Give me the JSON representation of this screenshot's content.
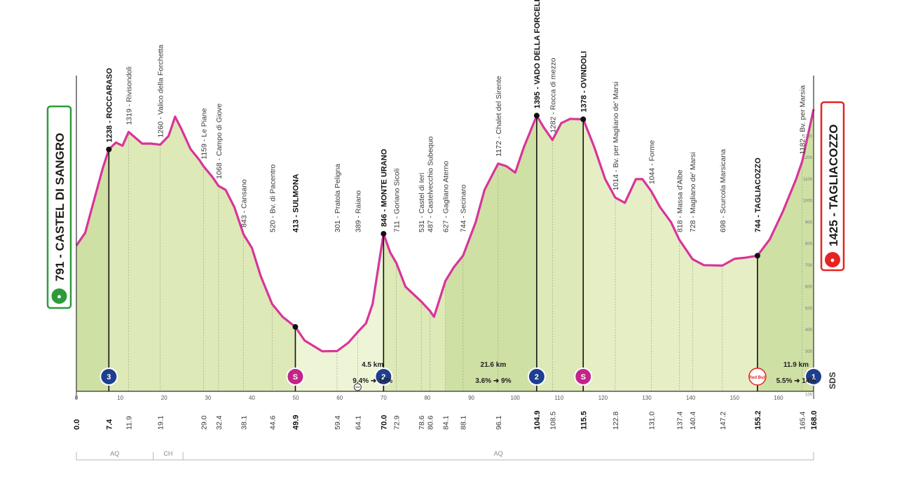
{
  "chart_data": {
    "type": "area",
    "x_unit": "km",
    "xlim": [
      0,
      168
    ],
    "ylim": [
      0,
      1600
    ],
    "x_ticks": [
      0,
      10,
      20,
      30,
      40,
      50,
      60,
      70,
      80,
      90,
      100,
      110,
      120,
      130,
      140,
      150,
      160
    ],
    "altitude_axis_ticks": [
      100,
      200,
      300,
      400,
      500,
      600,
      700,
      800,
      900,
      1000,
      1100,
      1200,
      1300
    ],
    "profile": [
      [
        0,
        791
      ],
      [
        2,
        850
      ],
      [
        4,
        1000
      ],
      [
        6,
        1150
      ],
      [
        7.4,
        1238
      ],
      [
        9,
        1270
      ],
      [
        10.5,
        1255
      ],
      [
        11.9,
        1319
      ],
      [
        13,
        1300
      ],
      [
        15,
        1265
      ],
      [
        17,
        1265
      ],
      [
        19.1,
        1260
      ],
      [
        21,
        1300
      ],
      [
        22.5,
        1390
      ],
      [
        24,
        1330
      ],
      [
        26,
        1240
      ],
      [
        28,
        1190
      ],
      [
        29,
        1159
      ],
      [
        31,
        1110
      ],
      [
        32.4,
        1068
      ],
      [
        34,
        1050
      ],
      [
        36,
        970
      ],
      [
        38.1,
        843
      ],
      [
        40,
        780
      ],
      [
        42,
        650
      ],
      [
        44.6,
        520
      ],
      [
        47,
        460
      ],
      [
        49.9,
        413
      ],
      [
        52,
        350
      ],
      [
        56,
        300
      ],
      [
        59.4,
        301
      ],
      [
        62,
        340
      ],
      [
        64.1,
        389
      ],
      [
        66,
        430
      ],
      [
        67.5,
        520
      ],
      [
        70,
        846
      ],
      [
        71.5,
        760
      ],
      [
        72.9,
        711
      ],
      [
        75,
        600
      ],
      [
        78.6,
        531
      ],
      [
        80,
        500
      ],
      [
        80.6,
        487
      ],
      [
        81.5,
        460
      ],
      [
        84.1,
        627
      ],
      [
        86,
        690
      ],
      [
        88.1,
        744
      ],
      [
        91,
        900
      ],
      [
        93,
        1050
      ],
      [
        96.1,
        1172
      ],
      [
        98,
        1160
      ],
      [
        100,
        1130
      ],
      [
        102,
        1250
      ],
      [
        104.9,
        1395
      ],
      [
        106.5,
        1340
      ],
      [
        108.5,
        1282
      ],
      [
        110.5,
        1360
      ],
      [
        112.5,
        1380
      ],
      [
        115.5,
        1378
      ],
      [
        118,
        1250
      ],
      [
        120.5,
        1100
      ],
      [
        122.8,
        1014
      ],
      [
        125,
        990
      ],
      [
        127.5,
        1100
      ],
      [
        129,
        1100
      ],
      [
        131,
        1044
      ],
      [
        133,
        970
      ],
      [
        135.5,
        900
      ],
      [
        137.4,
        818
      ],
      [
        140.4,
        728
      ],
      [
        143,
        700
      ],
      [
        147.2,
        698
      ],
      [
        150,
        730
      ],
      [
        152.5,
        735
      ],
      [
        155.2,
        744
      ],
      [
        158,
        820
      ],
      [
        161,
        950
      ],
      [
        164,
        1100
      ],
      [
        165.4,
        1182
      ],
      [
        168,
        1425
      ]
    ],
    "bands": [
      {
        "from": 0,
        "to": 7.4,
        "color": "#cfe0a4"
      },
      {
        "from": 7.4,
        "to": 49.9,
        "color": "#dde9b7"
      },
      {
        "from": 49.9,
        "to": 70,
        "color": "#eef4d6"
      },
      {
        "from": 70,
        "to": 84.1,
        "color": "#dde9b7"
      },
      {
        "from": 84.1,
        "to": 104.9,
        "color": "#cfe0a4"
      },
      {
        "from": 104.9,
        "to": 115.5,
        "color": "#dde9b7"
      },
      {
        "from": 115.5,
        "to": 155.2,
        "color": "#e6eec6"
      },
      {
        "from": 155.2,
        "to": 168,
        "color": "#cfe0a4"
      }
    ],
    "points_of_interest": [
      {
        "km": 7.4,
        "alt": 1238,
        "name": "ROCCARASO",
        "bold": true
      },
      {
        "km": 11.9,
        "alt": 1319,
        "name": "Rivisondoli",
        "bold": false
      },
      {
        "km": 19.1,
        "alt": 1260,
        "name": "Valico della Forchetta",
        "bold": false
      },
      {
        "km": 29.0,
        "alt": 1159,
        "name": "Le Piane",
        "bold": false
      },
      {
        "km": 32.4,
        "alt": 1068,
        "name": "Campo di Giove",
        "bold": false
      },
      {
        "km": 38.1,
        "alt": 843,
        "name": "Cansano",
        "bold": false
      },
      {
        "km": 44.6,
        "alt": 520,
        "name": "Bv. di Pacentro",
        "bold": false
      },
      {
        "km": 49.9,
        "alt": 413,
        "name": "SULMONA",
        "bold": true
      },
      {
        "km": 59.4,
        "alt": 301,
        "name": "Pratola Peligna",
        "bold": false
      },
      {
        "km": 64.1,
        "alt": 389,
        "name": "Raiano",
        "bold": false
      },
      {
        "km": 70.0,
        "alt": 846,
        "name": "MONTE URANO",
        "bold": true
      },
      {
        "km": 72.9,
        "alt": 711,
        "name": "Goriano Sicoli",
        "bold": false
      },
      {
        "km": 78.6,
        "alt": 531,
        "name": "Castel di Ieri",
        "bold": false
      },
      {
        "km": 80.6,
        "alt": 487,
        "name": "Castelvecchio Subequo",
        "bold": false
      },
      {
        "km": 84.1,
        "alt": 627,
        "name": "Gagliano Aterno",
        "bold": false
      },
      {
        "km": 88.1,
        "alt": 744,
        "name": "Secinaro",
        "bold": false
      },
      {
        "km": 96.1,
        "alt": 1172,
        "name": "Chalet del Sirente",
        "bold": false
      },
      {
        "km": 104.9,
        "alt": 1395,
        "name": "VADO DELLA FORCELLA",
        "bold": true
      },
      {
        "km": 108.5,
        "alt": 1282,
        "name": "Rocca di mezzo",
        "bold": false
      },
      {
        "km": 115.5,
        "alt": 1378,
        "name": "OVINDOLI",
        "bold": true
      },
      {
        "km": 122.8,
        "alt": 1014,
        "name": "Bv. per Magliano de' Marsi",
        "bold": false
      },
      {
        "km": 131.0,
        "alt": 1044,
        "name": "Forme",
        "bold": false
      },
      {
        "km": 137.4,
        "alt": 818,
        "name": "Massa d'Albe",
        "bold": false
      },
      {
        "km": 140.4,
        "alt": 728,
        "name": "Magliano de' Marsi",
        "bold": false
      },
      {
        "km": 147.2,
        "alt": 698,
        "name": "Scurcola Marsicana",
        "bold": false
      },
      {
        "km": 155.2,
        "alt": 744,
        "name": "TAGLIACOZZO",
        "bold": true
      },
      {
        "km": 165.4,
        "alt": 1182,
        "name": "Bv. per Marsia",
        "bold": false
      }
    ],
    "distance_labels": [
      "0.0",
      "7.4",
      "11.9",
      "19.1",
      "29.0",
      "32.4",
      "38.1",
      "44.6",
      "49.9",
      "59.4",
      "64.1",
      "70.0",
      "72.9",
      "78.6",
      "80.6",
      "84.1",
      "88.1",
      "96.1",
      "104.9",
      "108.5",
      "115.5",
      "122.8",
      "131.0",
      "137.4",
      "140.4",
      "147.2",
      "155.2",
      "165.4",
      "168.0"
    ],
    "bold_distances": [
      "0.0",
      "7.4",
      "49.9",
      "70.0",
      "104.9",
      "115.5",
      "155.2",
      "168.0"
    ],
    "start": {
      "name": "CASTEL DI SANGRO",
      "alt": 791,
      "color": "#2e9b3a"
    },
    "finish": {
      "name": "TAGLIACOZZO",
      "alt": 1425,
      "color": "#e52421"
    },
    "badges": [
      {
        "km": 7.4,
        "type": "climb",
        "label": "3",
        "color": "#1e3f8f"
      },
      {
        "km": 49.9,
        "type": "sprint",
        "label": "S",
        "color": "#c2258a"
      },
      {
        "km": 70.0,
        "type": "climb",
        "label": "2",
        "color": "#1e3f8f"
      },
      {
        "km": 104.9,
        "type": "climb",
        "label": "2",
        "color": "#1e3f8f"
      },
      {
        "km": 115.5,
        "type": "sprint",
        "label": "S",
        "color": "#c2258a"
      },
      {
        "km": 155.2,
        "type": "sponsor",
        "label": "Red Bull",
        "color": "#e52421"
      },
      {
        "km": 168.0,
        "type": "climb",
        "label": "1",
        "color": "#1e3f8f"
      }
    ],
    "gradients": [
      {
        "km": 67.5,
        "length": "4.5 km",
        "grade": "9.4% ➜ 14%"
      },
      {
        "km": 95.0,
        "length": "21.6 km",
        "grade": "3.6% ➜ 9%"
      },
      {
        "km": 164.0,
        "length": "11.9 km",
        "grade": "5.5% ➜ 14%"
      }
    ],
    "feed_zone_km": 64.1,
    "regions": [
      {
        "from": 0,
        "to": 17.5,
        "name": "AQ"
      },
      {
        "from": 17.5,
        "to": 24.3,
        "name": "CH"
      },
      {
        "from": 24.3,
        "to": 168,
        "name": "AQ"
      }
    ],
    "watermark": "SDS",
    "colors": {
      "profile_line": "#d9349a",
      "markers": "#111111"
    }
  }
}
